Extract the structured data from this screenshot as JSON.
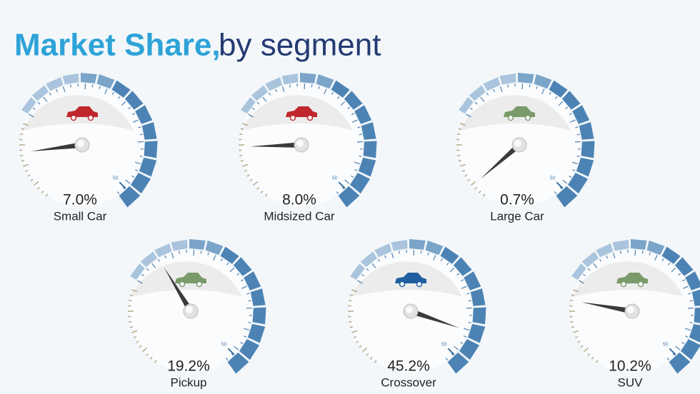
{
  "chart_data": {
    "type": "gauge",
    "title": "Market Share,",
    "subtitle": "by segment",
    "categories": [
      "Small Car",
      "Midsized Car",
      "Large Car",
      "Pickup",
      "Crossover",
      "SUV"
    ],
    "values": [
      7.0,
      8.0,
      0.7,
      19.2,
      45.2,
      10.2
    ],
    "value_labels": [
      "7.0%",
      "8.0%",
      "0.7%",
      "19.2%",
      "45.2%",
      "10.2%"
    ],
    "colors": [
      "#c0272d",
      "#c0272d",
      "#7a9a6a",
      "#7a9a6a",
      "#1f5fa0",
      "#7a9a6a"
    ],
    "ylim": [
      0,
      50
    ],
    "yticks": [
      50
    ]
  }
}
